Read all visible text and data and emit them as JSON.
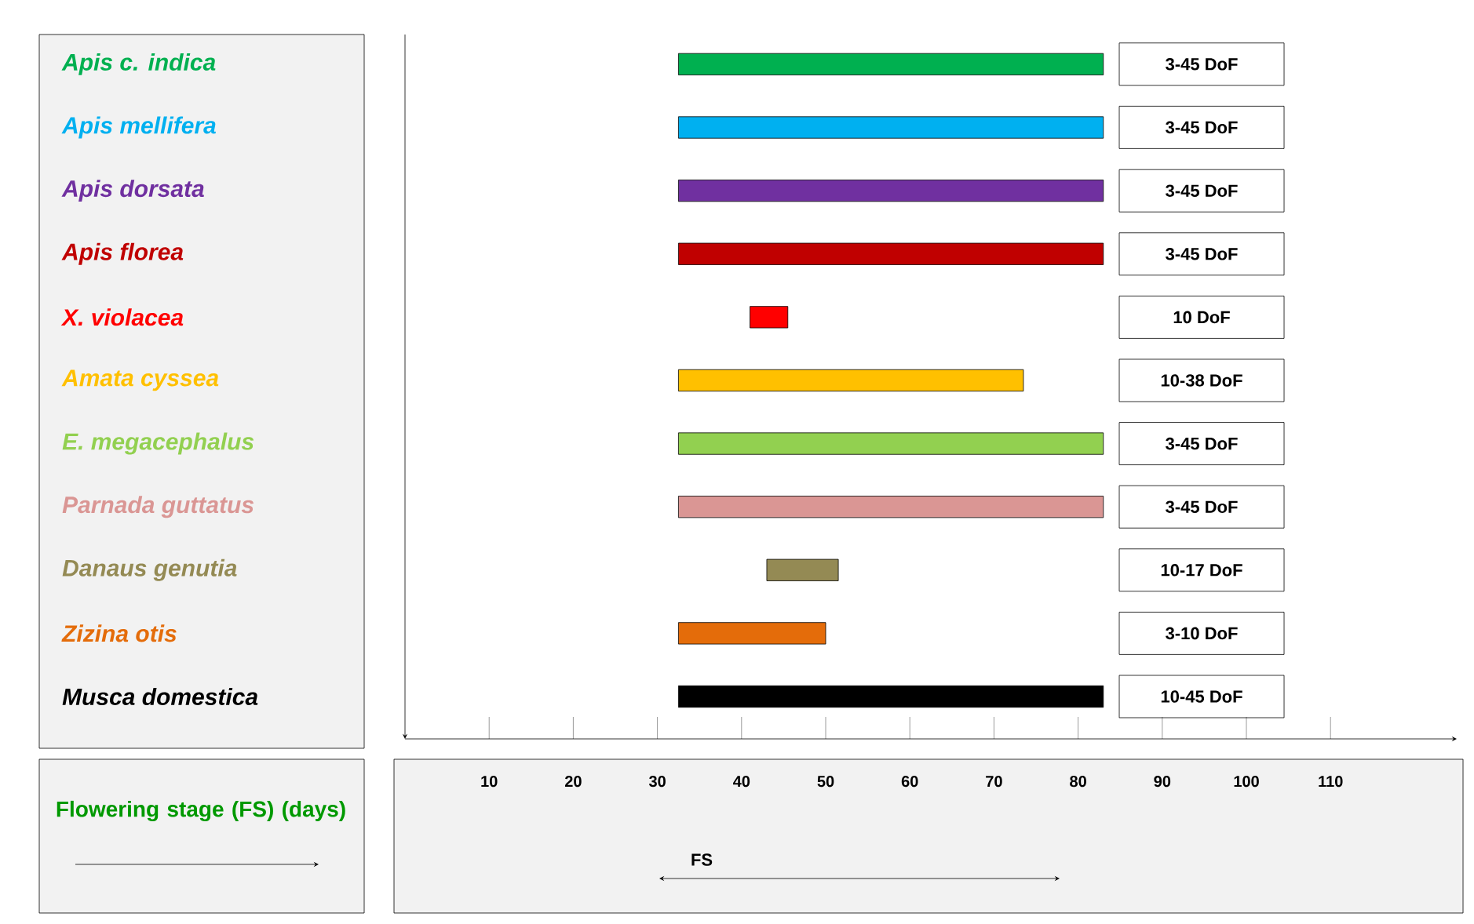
{
  "chart_data": {
    "type": "bar",
    "orientation": "horizontal",
    "categories": [
      "Apis c. indica",
      "Apis mellifera",
      "Apis dorsata",
      "Apis florea",
      "X. violacea",
      "Amata cyssea",
      "E. megacephalus",
      "Parnada guttatus",
      "Danaus genutia",
      "Zizina otis",
      "Musca domestica"
    ],
    "base": [
      32.5,
      32.5,
      32.5,
      32.5,
      41,
      32.5,
      32.5,
      32.5,
      43,
      32.5,
      32.5
    ],
    "values": [
      50.5,
      50.5,
      50.5,
      50.5,
      4.5,
      41,
      50.5,
      50.5,
      8.5,
      17.5,
      50.5
    ],
    "colors": [
      "#00b050",
      "#00b0f0",
      "#7030a0",
      "#c00000",
      "#ff0000",
      "#ffc000",
      "#92d050",
      "#da9694",
      "#948a54",
      "#e46c0a",
      "#000000"
    ],
    "xlim": [
      0,
      125
    ],
    "xticks": [
      10,
      20,
      30,
      40,
      50,
      60,
      70,
      80,
      90,
      100,
      110
    ],
    "xlabel": "Flowering stage (FS) (days)",
    "annotations": [
      "FS",
      "3-45 DoF",
      "3-45 DoF",
      "3-45 DoF",
      "3-45 DoF",
      "10 DoF",
      "10-38 DoF",
      "3-45 DoF",
      "3-45 DoF",
      "10-17 DoF",
      "3-10 DoF",
      "10-45 DoF"
    ]
  }
}
